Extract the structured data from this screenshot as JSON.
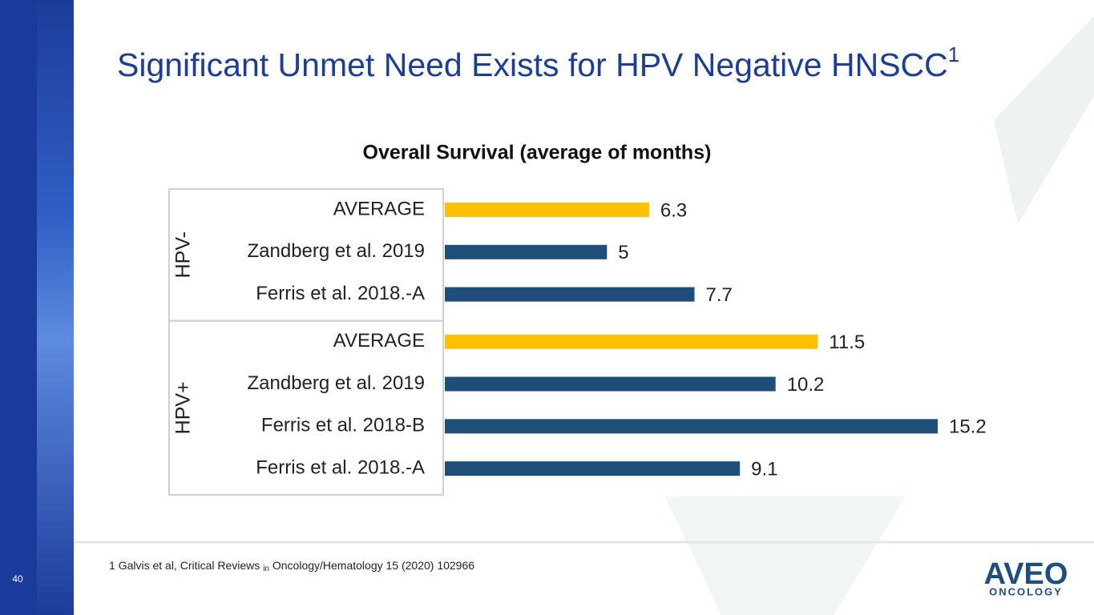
{
  "slide": {
    "title": "Significant Unmet Need Exists for HPV Negative HNSCC",
    "title_superscript": "1",
    "footnote": {
      "number": "1",
      "text_before": "Galvis et al, Critical Reviews",
      "small": "in",
      "text_after": "Oncology/Hematology 15 (2020) 102966"
    },
    "page_number": "40",
    "logo": {
      "name": "AVEO",
      "subtitle": "ONCOLOGY"
    }
  },
  "chart_data": {
    "type": "bar",
    "orientation": "horizontal",
    "title": "Overall Survival (average of months)",
    "groups": [
      {
        "name": "HPV-",
        "categories": [
          "AVERAGE",
          "Zandberg et al. 2019",
          "Ferris et al. 2018.-A"
        ],
        "values": [
          6.3,
          5,
          7.7
        ],
        "colors": [
          "#ffc000",
          "#1f4e79",
          "#1f4e79"
        ]
      },
      {
        "name": "HPV+",
        "categories": [
          "AVERAGE",
          "Zandberg et al. 2019",
          "Ferris et al. 2018-B",
          "Ferris et al. 2018.-A"
        ],
        "values": [
          11.5,
          10.2,
          15.2,
          9.1
        ],
        "colors": [
          "#ffc000",
          "#1f4e79",
          "#1f4e79",
          "#1f4e79"
        ]
      }
    ]
  }
}
